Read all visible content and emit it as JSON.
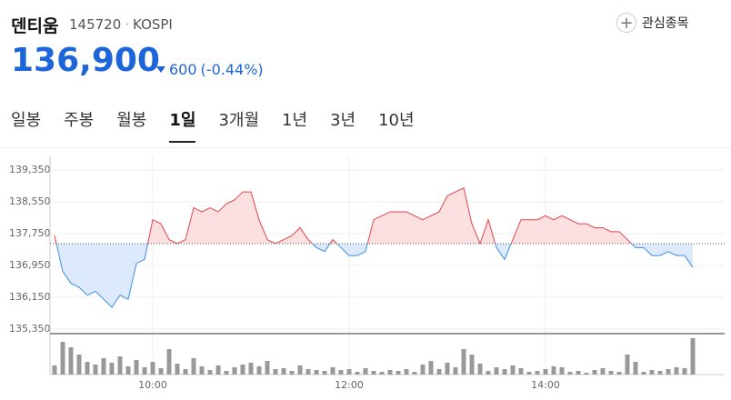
{
  "header": {
    "name": "덴티움",
    "code": "145720",
    "market": "KOSPI",
    "watch": "관심종목",
    "price": "136,900",
    "change": "600",
    "change_pct": "(-0.44%)"
  },
  "tabs": [
    "일봉",
    "주봉",
    "월봉",
    "1일",
    "3개월",
    "1년",
    "3년",
    "10년"
  ],
  "active_tab": 3,
  "chart_data": {
    "type": "line",
    "categories": [
      "09:00",
      "09:05",
      "09:10",
      "09:15",
      "09:20",
      "09:25",
      "09:30",
      "09:35",
      "09:40",
      "09:45",
      "09:50",
      "09:55",
      "10:00",
      "10:05",
      "10:10",
      "10:15",
      "10:20",
      "10:25",
      "10:30",
      "10:35",
      "10:40",
      "10:45",
      "10:50",
      "10:55",
      "11:00",
      "11:05",
      "11:10",
      "11:15",
      "11:20",
      "11:25",
      "11:30",
      "11:35",
      "11:40",
      "11:45",
      "11:50",
      "11:55",
      "12:00",
      "12:05",
      "12:10",
      "12:15",
      "12:20",
      "12:25",
      "12:30",
      "12:35",
      "12:40",
      "12:45",
      "12:50",
      "12:55",
      "13:00",
      "13:05",
      "13:10",
      "13:15",
      "13:20",
      "13:25",
      "13:30",
      "13:35",
      "13:40",
      "13:45",
      "13:50",
      "13:55",
      "14:00",
      "14:05",
      "14:10",
      "14:15",
      "14:20",
      "14:25",
      "14:30",
      "14:35",
      "14:40",
      "14:45",
      "14:50",
      "14:55",
      "15:00",
      "15:05",
      "15:10",
      "15:15",
      "15:20",
      "15:25",
      "15:30"
    ],
    "series": [
      {
        "name": "price",
        "up_color": "#e0454a",
        "down_color": "#3a8ee0",
        "up_fill": "#fbdfe1",
        "down_fill": "#dceafb",
        "values": [
          137700,
          136800,
          136500,
          136400,
          136200,
          136300,
          136100,
          135900,
          136200,
          136100,
          137000,
          137100,
          138100,
          138000,
          137600,
          137500,
          137600,
          138400,
          138300,
          138400,
          138300,
          138500,
          138600,
          138800,
          138800,
          138100,
          137600,
          137500,
          137600,
          137700,
          137900,
          137600,
          137400,
          137300,
          137600,
          137400,
          137200,
          137200,
          137300,
          138100,
          138200,
          138300,
          138300,
          138300,
          138200,
          138100,
          138200,
          138300,
          138700,
          138800,
          138900,
          138000,
          137500,
          138100,
          137400,
          137100,
          137600,
          138100,
          138100,
          138100,
          138200,
          138100,
          138200,
          138100,
          138000,
          138000,
          137900,
          137900,
          137800,
          137800,
          137600,
          137400,
          137400,
          137200,
          137200,
          137300,
          137200,
          137200,
          136900
        ]
      }
    ],
    "reference_line": 137500,
    "ylim": [
      135350,
      139350
    ],
    "yticks": [
      {
        "value": 139350,
        "label": "139,350"
      },
      {
        "value": 138550,
        "label": "138,550"
      },
      {
        "value": 137750,
        "label": "137,750"
      },
      {
        "value": 136950,
        "label": "136,950"
      },
      {
        "value": 136150,
        "label": "136,150"
      },
      {
        "value": 135350,
        "label": "135,350"
      }
    ],
    "xticks": [
      "10:00",
      "12:00",
      "14:00"
    ],
    "grid": true,
    "volume": {
      "color": "#999999",
      "ylim": [
        0,
        45
      ],
      "values": [
        10,
        36,
        30,
        22,
        14,
        11,
        18,
        13,
        20,
        9,
        16,
        8,
        14,
        7,
        28,
        12,
        6,
        18,
        9,
        5,
        10,
        4,
        8,
        11,
        13,
        9,
        15,
        6,
        7,
        4,
        10,
        6,
        5,
        4,
        8,
        5,
        6,
        3,
        7,
        4,
        3,
        5,
        4,
        6,
        3,
        11,
        15,
        6,
        13,
        8,
        28,
        22,
        12,
        4,
        8,
        6,
        10,
        7,
        3,
        4,
        6,
        9,
        8,
        3,
        4,
        2,
        5,
        7,
        4,
        3,
        22,
        14,
        3,
        5,
        4,
        6,
        8,
        7,
        40
      ]
    }
  }
}
